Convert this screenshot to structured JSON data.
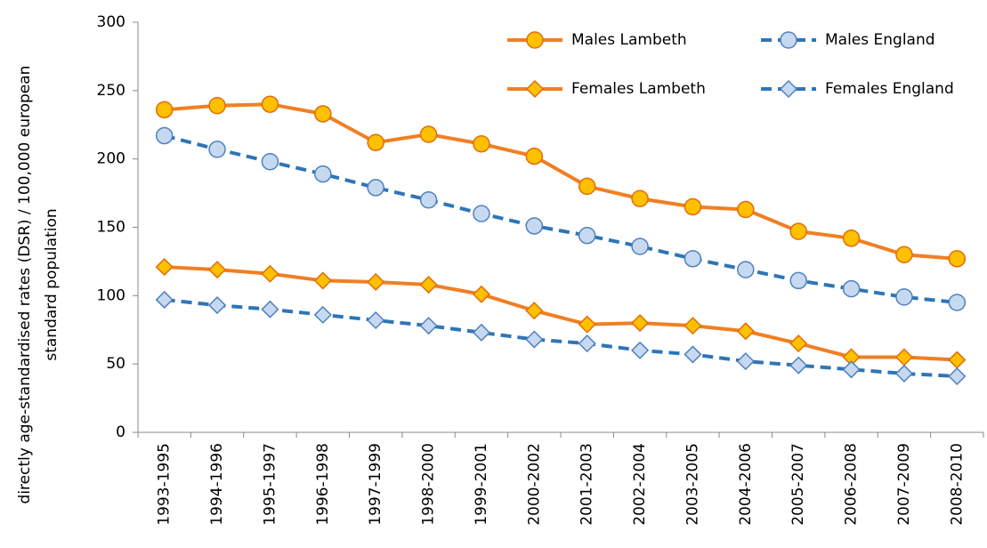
{
  "chart_data": {
    "type": "line",
    "ylabel": [
      "directly age-standardised rates (DSR) / 100,000 european",
      "standard population"
    ],
    "categories": [
      "1993-1995",
      "1994-1996",
      "1995-1997",
      "1996-1998",
      "1997-1999",
      "1998-2000",
      "1999-2001",
      "2000-2002",
      "2001-2003",
      "2002-2004",
      "2003-2005",
      "2004-2006",
      "2005-2007",
      "2006-2008",
      "2007-2009",
      "2008-2010"
    ],
    "series": [
      {
        "name": "Males Lambeth",
        "color": "#f07f23",
        "marker": "circle",
        "marker_fill": "#ffc000",
        "marker_stroke": "#e36c09",
        "dashed": false,
        "values": [
          236,
          239,
          240,
          233,
          212,
          218,
          211,
          202,
          180,
          171,
          165,
          163,
          147,
          142,
          130,
          127
        ]
      },
      {
        "name": "Males England",
        "color": "#2e75b6",
        "marker": "circle",
        "marker_fill": "#c6d9f1",
        "marker_stroke": "#4f81bd",
        "dashed": true,
        "values": [
          217,
          207,
          198,
          189,
          179,
          170,
          160,
          151,
          144,
          136,
          127,
          119,
          111,
          105,
          99,
          95
        ]
      },
      {
        "name": "Females Lambeth",
        "color": "#f07f23",
        "marker": "diamond",
        "marker_fill": "#ffc000",
        "marker_stroke": "#e36c09",
        "dashed": false,
        "values": [
          121,
          119,
          116,
          111,
          110,
          108,
          101,
          89,
          79,
          80,
          78,
          74,
          65,
          55,
          55,
          53
        ]
      },
      {
        "name": "Females England",
        "color": "#2e75b6",
        "marker": "diamond",
        "marker_fill": "#c6d9f1",
        "marker_stroke": "#4f81bd",
        "dashed": true,
        "values": [
          97,
          93,
          90,
          86,
          82,
          78,
          73,
          68,
          65,
          60,
          57,
          52,
          49,
          46,
          43,
          41
        ]
      }
    ],
    "ylim": [
      0,
      300
    ],
    "yticks": [
      0,
      50,
      100,
      150,
      200,
      250,
      300
    ],
    "grid": false,
    "legend": "top-right"
  }
}
